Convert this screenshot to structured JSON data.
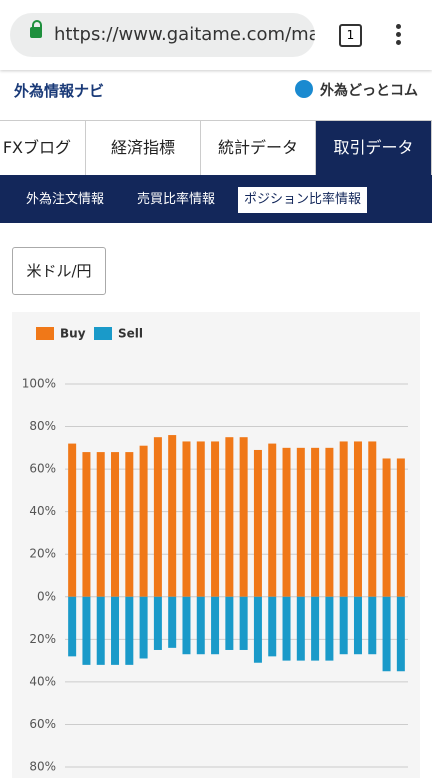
{
  "browser": {
    "url": "https://www.gaitame.com/ma",
    "tab_count": "1"
  },
  "header": {
    "left_logo": "外為情報ナビ",
    "right_logo": "外為どっとコム"
  },
  "tabs": [
    "FXブログ",
    "経済指標",
    "統計データ",
    "取引データ"
  ],
  "subtabs": [
    "外為注文情報",
    "売買比率情報",
    "ポジション比率情報"
  ],
  "selector": "米ドル/円",
  "chart_data": {
    "type": "bar",
    "series": [
      {
        "name": "Buy",
        "color": "#f07818",
        "values": [
          72,
          68,
          68,
          68,
          68,
          71,
          75,
          76,
          73,
          73,
          73,
          75,
          75,
          69,
          72,
          70,
          70,
          70,
          70,
          73,
          73,
          73,
          65,
          65
        ]
      },
      {
        "name": "Sell",
        "color": "#1a9ac9",
        "values": [
          -28,
          -32,
          -32,
          -32,
          -32,
          -29,
          -25,
          -24,
          -27,
          -27,
          -27,
          -25,
          -25,
          -31,
          -28,
          -30,
          -30,
          -30,
          -30,
          -27,
          -27,
          -27,
          -35,
          -35
        ]
      }
    ],
    "ylim": [
      -80,
      100
    ],
    "yticks": [
      {
        "value": 100,
        "label": "100%"
      },
      {
        "value": 80,
        "label": "80%"
      },
      {
        "value": 60,
        "label": "60%"
      },
      {
        "value": 40,
        "label": "40%"
      },
      {
        "value": 20,
        "label": "20%"
      },
      {
        "value": 0,
        "label": "0%"
      },
      {
        "value": -20,
        "label": "20%"
      },
      {
        "value": -40,
        "label": "40%"
      },
      {
        "value": -60,
        "label": "60%"
      },
      {
        "value": -80,
        "label": "80%"
      }
    ],
    "grid": true,
    "stacked": true,
    "legend": "top-left"
  }
}
